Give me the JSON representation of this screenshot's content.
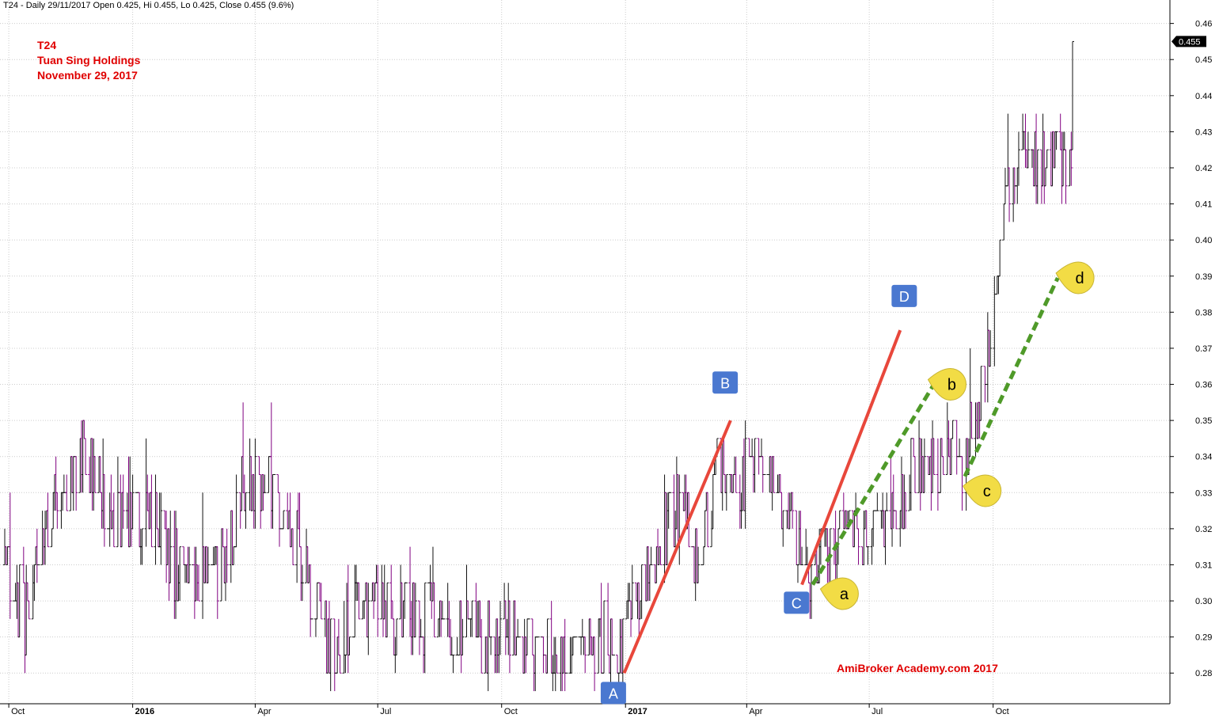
{
  "header": {
    "text": "T24 - Daily 29/11/2017 Open 0.425, Hi 0.455, Lo 0.425, Close 0.455 (9.6%)"
  },
  "title": {
    "ticker": "T24",
    "company": "Tuan Sing Holdings",
    "date": "November 29, 2017"
  },
  "watermark": "AmiBroker Academy.com  2017",
  "last_price": "0.455",
  "colors": {
    "up_bar": "#111111",
    "down_bar": "#800080",
    "trend_line": "#e8473b",
    "dashed_line": "#4f9a29",
    "box_label": "#4a78d0",
    "bubble_label": "#f2dc45",
    "title_text": "#e00000",
    "grid": "#cccccc"
  },
  "chart_data": {
    "type": "ohlc",
    "title": "T24",
    "subtitle": "Tuan Sing Holdings",
    "y_axis": {
      "side": "right",
      "ticks": [
        "0.28",
        "0.29",
        "0.30",
        "0.31",
        "0.32",
        "0.33",
        "0.34",
        "0.35",
        "0.36",
        "0.37",
        "0.38",
        "0.39",
        "0.40",
        "0.41",
        "0.42",
        "0.43",
        "0.44",
        "0.45",
        "0.46"
      ],
      "range": [
        0.2715,
        0.4665
      ]
    },
    "x_axis": {
      "range": [
        "2015-09-28",
        "2017-11-29"
      ],
      "ticks": [
        {
          "label": "Oct",
          "date": "2015-10-01"
        },
        {
          "label": "2016",
          "date": "2016-01-01",
          "bold": true
        },
        {
          "label": "Apr",
          "date": "2016-04-01"
        },
        {
          "label": "Jul",
          "date": "2016-07-01"
        },
        {
          "label": "Oct",
          "date": "2016-10-01"
        },
        {
          "label": "2017",
          "date": "2017-01-01",
          "bold": true
        },
        {
          "label": "Apr",
          "date": "2017-04-01"
        },
        {
          "label": "Jul",
          "date": "2017-07-01"
        },
        {
          "label": "Oct",
          "date": "2017-10-01"
        }
      ]
    },
    "grid": true,
    "price_path": [
      [
        "2015-09-28",
        0.31
      ],
      [
        "2015-10-15",
        0.295
      ],
      [
        "2015-11-01",
        0.325
      ],
      [
        "2015-11-25",
        0.345
      ],
      [
        "2015-12-10",
        0.33
      ],
      [
        "2015-12-25",
        0.32
      ],
      [
        "2016-01-10",
        0.325
      ],
      [
        "2016-01-31",
        0.31
      ],
      [
        "2016-02-20",
        0.305
      ],
      [
        "2016-03-10",
        0.31
      ],
      [
        "2016-03-25",
        0.335
      ],
      [
        "2016-04-15",
        0.33
      ],
      [
        "2016-05-01",
        0.32
      ],
      [
        "2016-05-15",
        0.3
      ],
      [
        "2016-05-31",
        0.285
      ],
      [
        "2016-06-15",
        0.3
      ],
      [
        "2016-07-15",
        0.295
      ],
      [
        "2016-08-15",
        0.295
      ],
      [
        "2016-09-15",
        0.29
      ],
      [
        "2016-10-15",
        0.29
      ],
      [
        "2016-11-15",
        0.285
      ],
      [
        "2016-12-10",
        0.29
      ],
      [
        "2016-12-25",
        0.285
      ],
      [
        "2017-01-10",
        0.3
      ],
      [
        "2017-02-05",
        0.325
      ],
      [
        "2017-02-25",
        0.315
      ],
      [
        "2017-03-15",
        0.34
      ],
      [
        "2017-04-01",
        0.335
      ],
      [
        "2017-04-20",
        0.335
      ],
      [
        "2017-05-05",
        0.32
      ],
      [
        "2017-05-20",
        0.31
      ],
      [
        "2017-06-10",
        0.315
      ],
      [
        "2017-06-30",
        0.315
      ],
      [
        "2017-07-15",
        0.325
      ],
      [
        "2017-08-01",
        0.335
      ],
      [
        "2017-08-20",
        0.34
      ],
      [
        "2017-09-10",
        0.34
      ],
      [
        "2017-09-20",
        0.355
      ],
      [
        "2017-09-28",
        0.37
      ],
      [
        "2017-10-10",
        0.41
      ],
      [
        "2017-10-20",
        0.425
      ],
      [
        "2017-11-10",
        0.425
      ],
      [
        "2017-11-28",
        0.42
      ],
      [
        "2017-11-29",
        0.455
      ]
    ],
    "last_bar": {
      "date": "2017-11-29",
      "open": 0.425,
      "high": 0.455,
      "low": 0.425,
      "close": 0.455
    },
    "annotations": {
      "trend_lines": [
        {
          "from": [
            "2016-12-31",
            0.28
          ],
          "to": [
            "2017-03-20",
            0.35
          ],
          "style": "solid"
        },
        {
          "from": [
            "2017-05-12",
            0.3045
          ],
          "to": [
            "2017-07-24",
            0.375
          ],
          "style": "solid"
        },
        {
          "from": [
            "2017-05-20",
            0.3045
          ],
          "to": [
            "2017-08-18",
            0.36
          ],
          "style": "dashed"
        },
        {
          "from": [
            "2017-09-10",
            0.3345
          ],
          "to": [
            "2017-11-18",
            0.3895
          ],
          "style": "dashed"
        }
      ],
      "box_labels": [
        {
          "text": "A",
          "at": [
            "2016-12-23",
            0.2745
          ]
        },
        {
          "text": "B",
          "at": [
            "2017-03-16",
            0.3605
          ]
        },
        {
          "text": "C",
          "at": [
            "2017-05-08",
            0.2995
          ]
        },
        {
          "text": "D",
          "at": [
            "2017-07-27",
            0.3845
          ]
        }
      ],
      "bubble_labels": [
        {
          "text": "a",
          "at": [
            "2017-06-10",
            0.302
          ]
        },
        {
          "text": "b",
          "at": [
            "2017-08-29",
            0.36
          ]
        },
        {
          "text": "c",
          "at": [
            "2017-09-24",
            0.3305
          ]
        },
        {
          "text": "d",
          "at": [
            "2017-12-02",
            0.3895
          ]
        }
      ]
    }
  }
}
